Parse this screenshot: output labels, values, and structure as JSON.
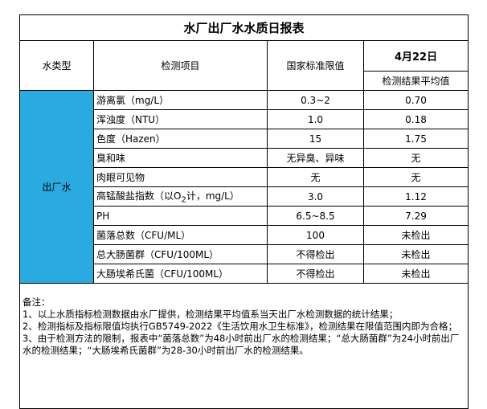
{
  "title": "水厂出厂水水质日报表",
  "header": {
    "water_type": "水类型",
    "item": "检测项目",
    "limit": "国家标准限值",
    "date": "4月22日",
    "result": "检测结果平均值"
  },
  "water_type": "出厂水",
  "rows": [
    {
      "item": "游离氯（mg/L）",
      "limit": "0.3~2",
      "result": "0.70"
    },
    {
      "item": "浑浊度（NTU）",
      "limit": "1.0",
      "result": "0.18"
    },
    {
      "item": "色度（Hazen）",
      "limit": "15",
      "result": "1.75"
    },
    {
      "item": "臭和味",
      "limit": "无异臭、异味",
      "result": "无"
    },
    {
      "item": "肉眼可见物",
      "limit": "无",
      "result": "无"
    },
    {
      "item": {
        "text": "高锰酸盐指数（以O",
        "sub": "2",
        "after": "计，mg/L）"
      },
      "limit": "3.0",
      "result": "1.12"
    },
    {
      "item": "PH",
      "limit": "6.5~8.5",
      "result": "7.29"
    },
    {
      "item": "菌落总数（CFU/ML）",
      "limit": "100",
      "result": "未检出"
    },
    {
      "item": "总大肠菌群（CFU/100ML）",
      "limit": "不得检出",
      "result": "未检出"
    },
    {
      "item": "大肠埃希氏菌（CFU/100ML）",
      "limit": "不得检出",
      "result": "未检出"
    }
  ],
  "notes": [
    "备注：",
    "1、以上水质指标检测数据由水厂提供，检测结果平均值系当天出厂水检测数据的统计结果；",
    "2、检测指标及指标限值均执行GB5749-2022《生活饮用水卫生标准》，检测结果在限值范围内即为合格；",
    "3、由于检测方法的限制，报表中“菌落总数”为48小时前出厂水的检测结果；“总大肠菌群”为24小时前出厂水的检测结果；“大肠埃希氏菌群”为28-30小时前出厂水的检测结果。"
  ]
}
